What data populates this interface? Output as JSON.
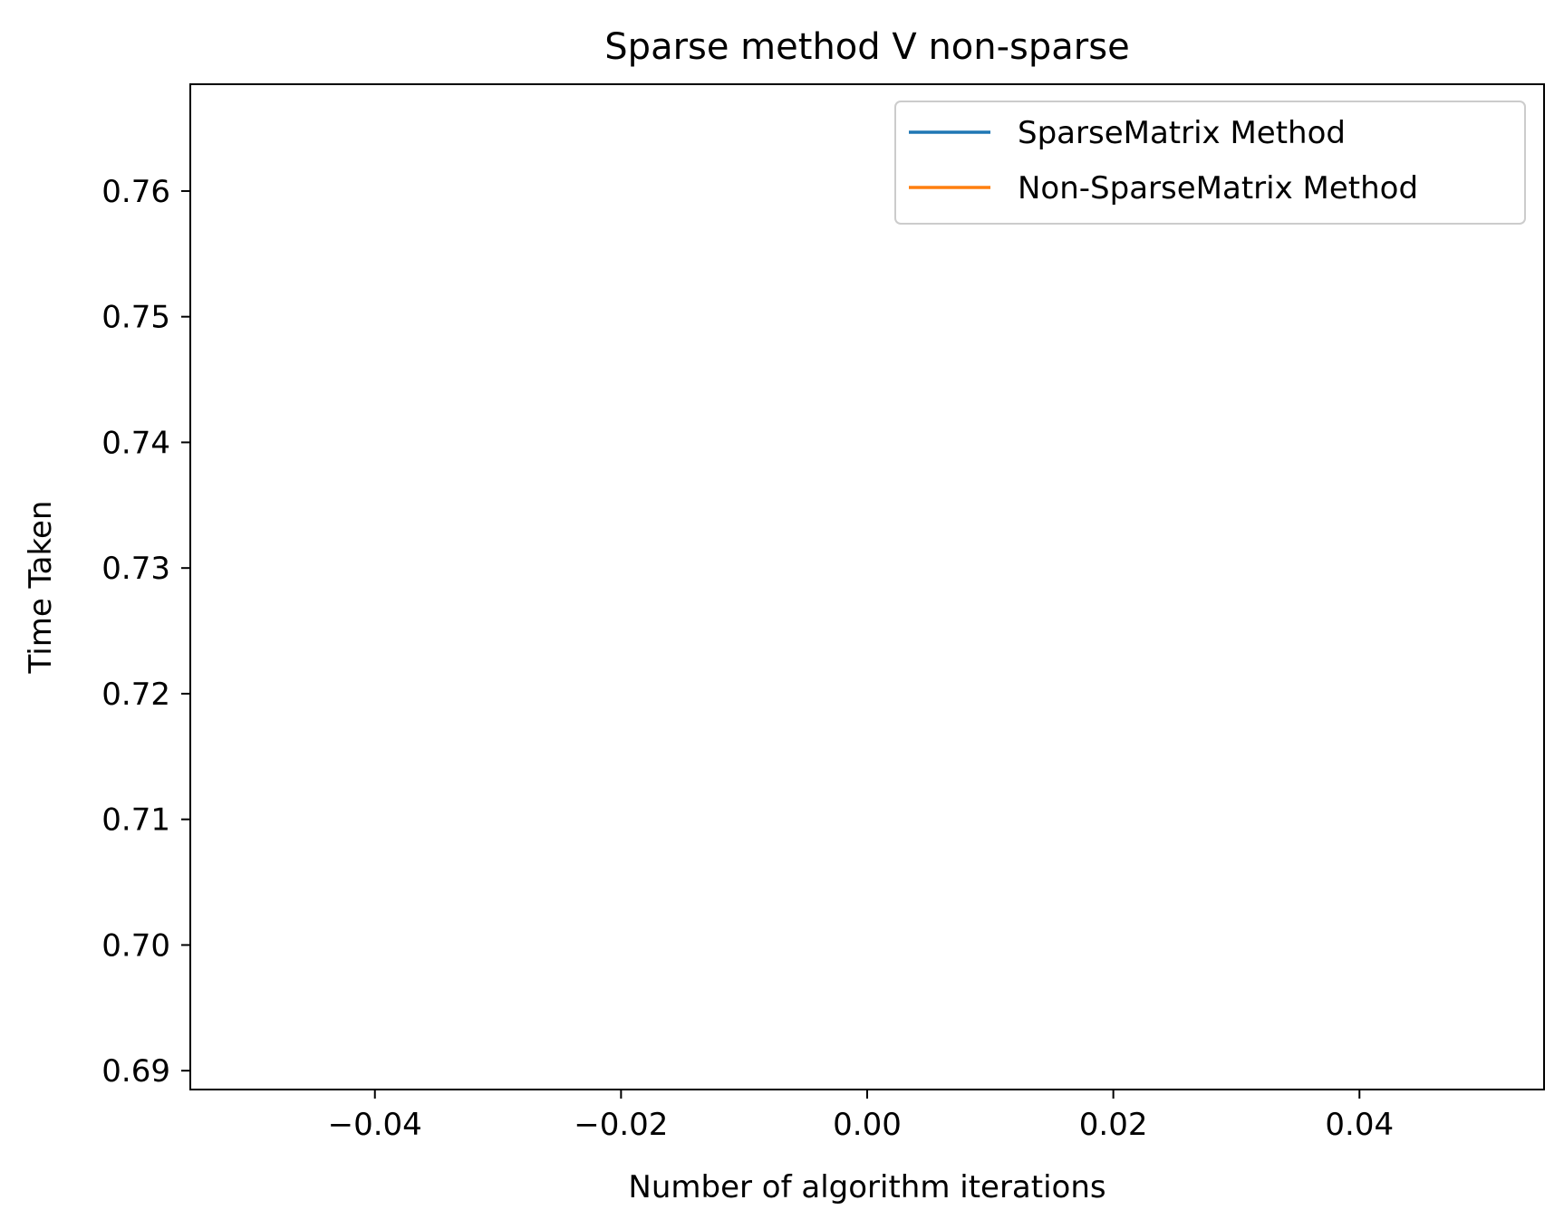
{
  "chart_data": {
    "type": "line",
    "title": "Sparse method V non-sparse",
    "xlabel": "Number of algorithm iterations",
    "ylabel": "Time Taken",
    "xlim": [
      -0.055,
      0.055
    ],
    "ylim": [
      0.6885,
      0.7685
    ],
    "x_ticks": [
      -0.04,
      -0.02,
      0.0,
      0.02,
      0.04
    ],
    "x_tick_labels": [
      "−0.04",
      "−0.02",
      "0.00",
      "0.02",
      "0.04"
    ],
    "y_ticks": [
      0.69,
      0.7,
      0.71,
      0.72,
      0.73,
      0.74,
      0.75,
      0.76
    ],
    "y_tick_labels": [
      "0.69",
      "0.70",
      "0.71",
      "0.72",
      "0.73",
      "0.74",
      "0.75",
      "0.76"
    ],
    "grid": false,
    "legend_position": "top-right",
    "series": [
      {
        "name": "SparseMatrix Method",
        "color": "#1f77b4",
        "x": [],
        "y": []
      },
      {
        "name": "Non-SparseMatrix Method",
        "color": "#ff7f0e",
        "x": [],
        "y": []
      }
    ]
  }
}
